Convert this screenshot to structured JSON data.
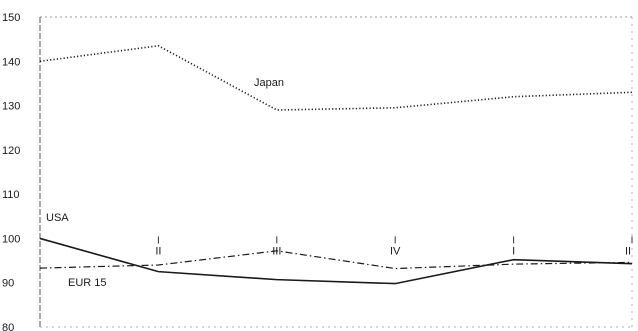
{
  "chart_data": {
    "type": "line",
    "title": "",
    "xlabel": "",
    "ylabel": "",
    "ylim": [
      80,
      150
    ],
    "yticks": [
      80,
      90,
      100,
      110,
      120,
      130,
      140,
      150
    ],
    "x_quarter_labels": [
      "II",
      "III",
      "IV",
      "I",
      "II"
    ],
    "grid": false,
    "series": [
      {
        "name": "Japan",
        "style": "dotted",
        "color": "#1a1a1a",
        "values": [
          140,
          143.5,
          129,
          129.5,
          132,
          133
        ]
      },
      {
        "name": "USA",
        "style": "solid",
        "color": "#1a1a1a",
        "values": [
          100,
          92.5,
          90.7,
          89.8,
          95.2,
          94.3
        ]
      },
      {
        "name": "EUR 15",
        "style": "dash-dot",
        "color": "#1a1a1a",
        "values": [
          93.3,
          94,
          97.2,
          93.2,
          94.2,
          94.6
        ]
      }
    ]
  }
}
